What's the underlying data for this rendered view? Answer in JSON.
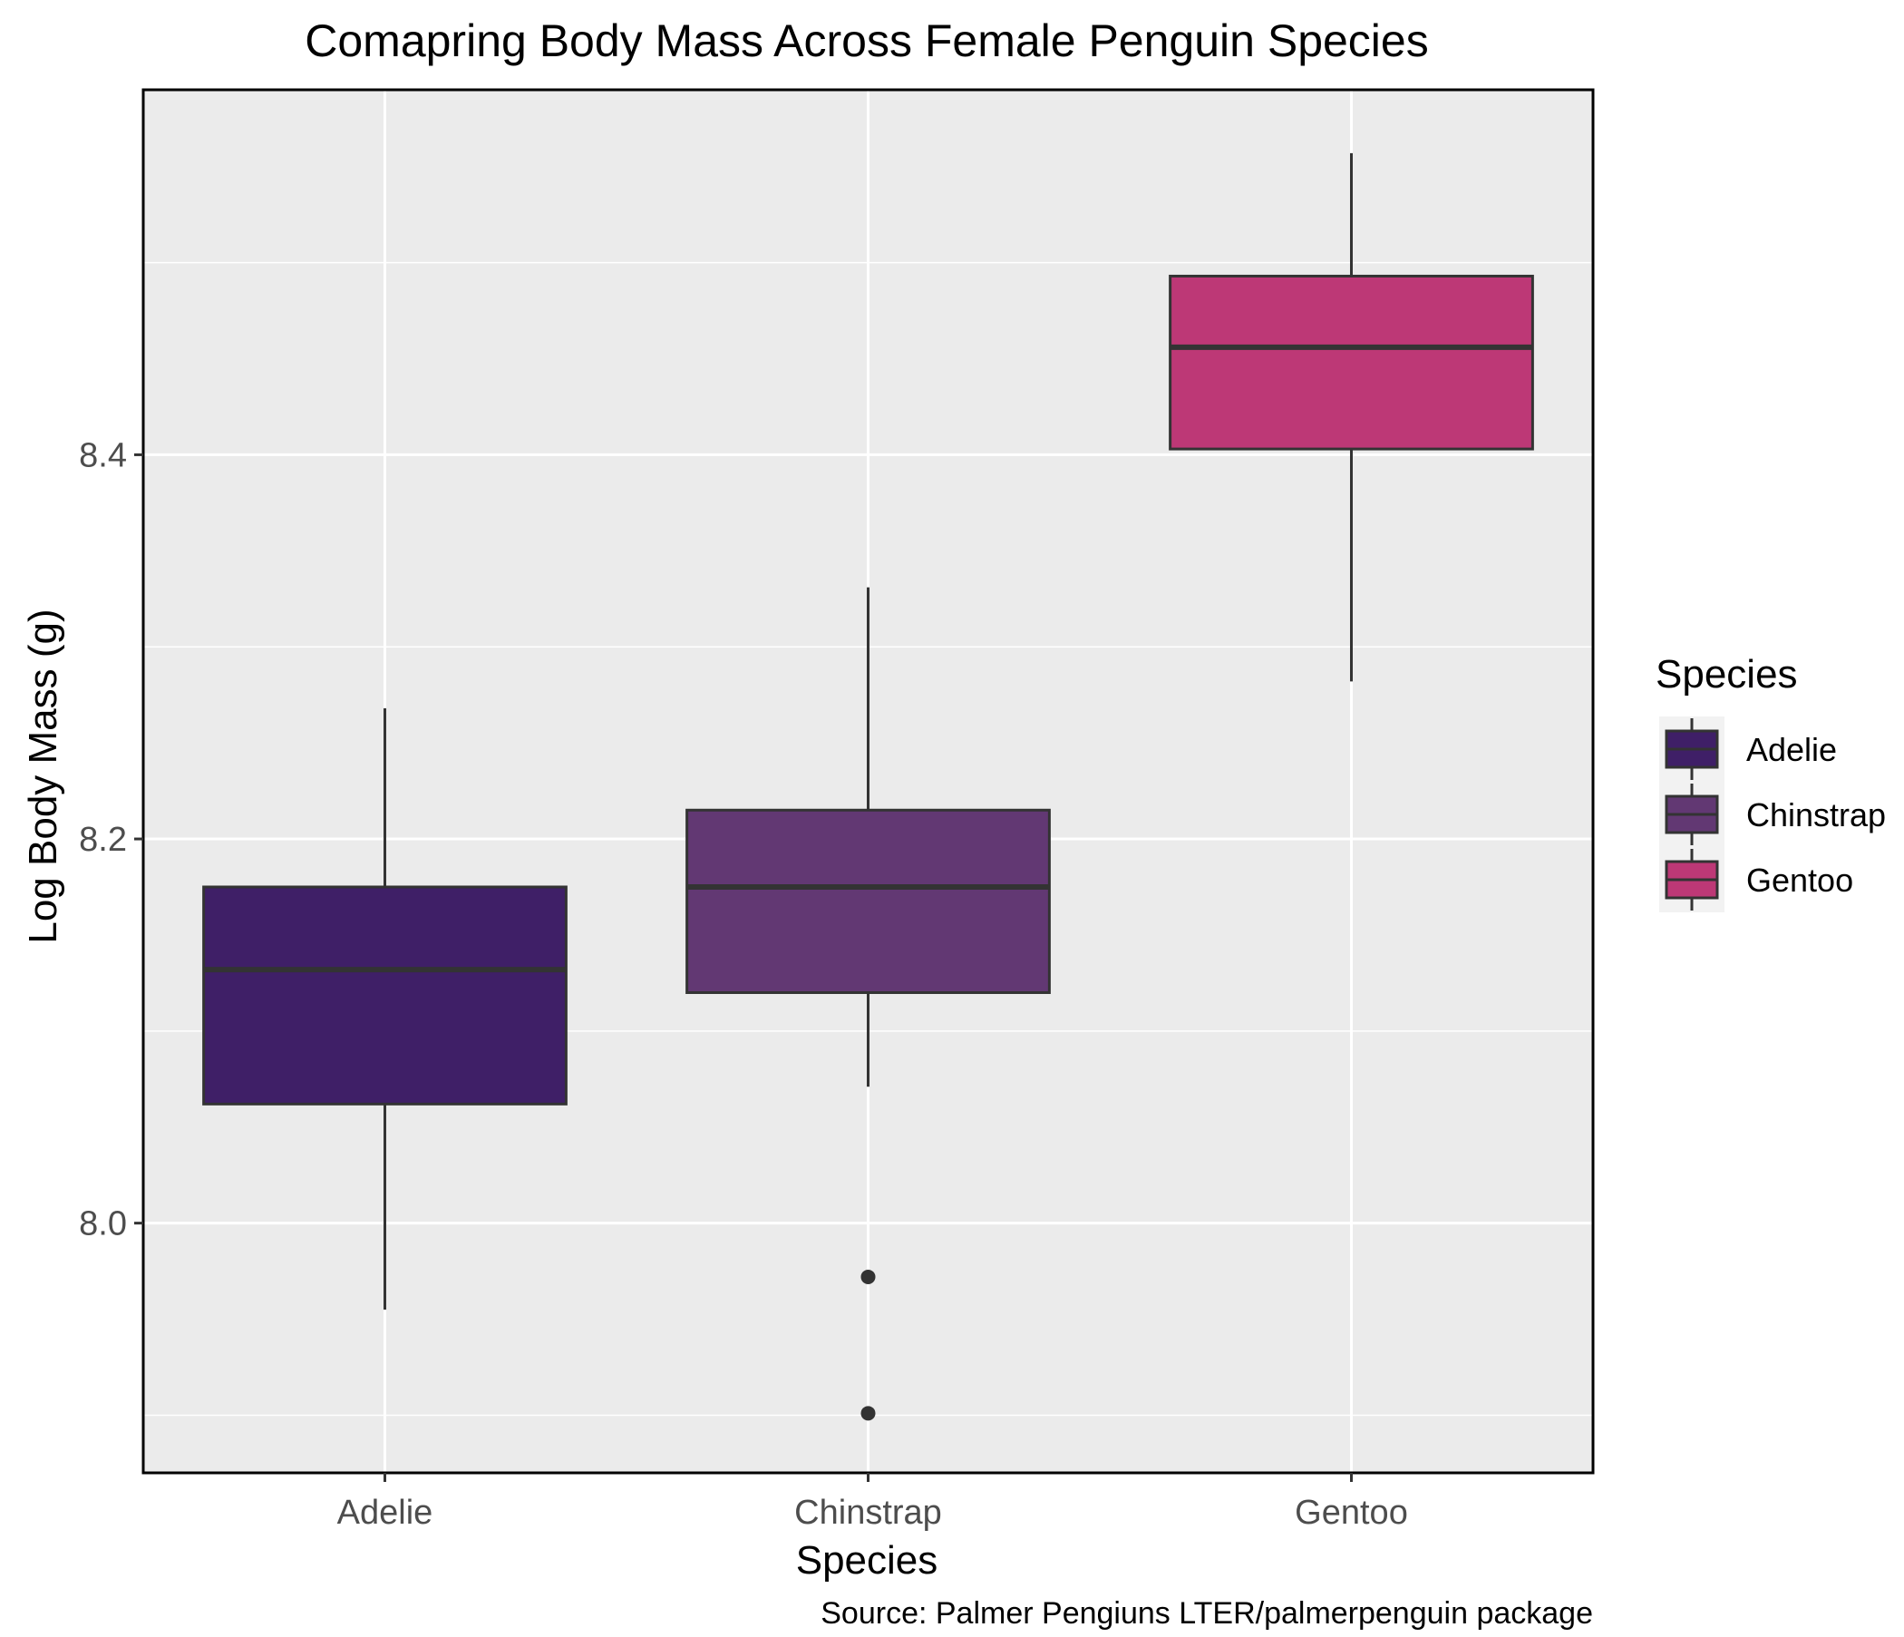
{
  "chart_data": {
    "type": "boxplot",
    "title": "Comapring Body Mass Across Female Penguin Species",
    "xlabel": "Species",
    "ylabel": "Log Body Mass (g)",
    "caption": "Source: Palmer Pengiuns LTER/palmerpenguin package",
    "categories": [
      "Adelie",
      "Chinstrap",
      "Gentoo"
    ],
    "ylim": [
      7.87,
      8.59
    ],
    "yticks": [
      8.0,
      8.2,
      8.4
    ],
    "ytick_labels": [
      "8.0",
      "8.2",
      "8.4"
    ],
    "grid": true,
    "legend": {
      "title": "Species",
      "placement": "right",
      "items": [
        {
          "label": "Adelie",
          "color": "#3f1f67"
        },
        {
          "label": "Chinstrap",
          "color": "#623873"
        },
        {
          "label": "Gentoo",
          "color": "#bd3876"
        }
      ]
    },
    "series": [
      {
        "category": "Adelie",
        "whisker_low": 7.955,
        "q1": 8.062,
        "median": 8.132,
        "q3": 8.175,
        "whisker_high": 8.268,
        "outliers": [],
        "color": "#3f1f67"
      },
      {
        "category": "Chinstrap",
        "whisker_low": 8.071,
        "q1": 8.12,
        "median": 8.175,
        "q3": 8.215,
        "whisker_high": 8.331,
        "outliers": [
          7.972,
          7.901
        ],
        "color": "#623873"
      },
      {
        "category": "Gentoo",
        "whisker_low": 8.282,
        "q1": 8.403,
        "median": 8.456,
        "q3": 8.493,
        "whisker_high": 8.557,
        "outliers": [],
        "color": "#bd3876"
      }
    ],
    "colors": {
      "panel": "#ebebeb",
      "grid": "#ffffff",
      "box_line": "#333333",
      "axis_line": "#000000",
      "legend_key_bg": "#f2f2f2"
    }
  }
}
